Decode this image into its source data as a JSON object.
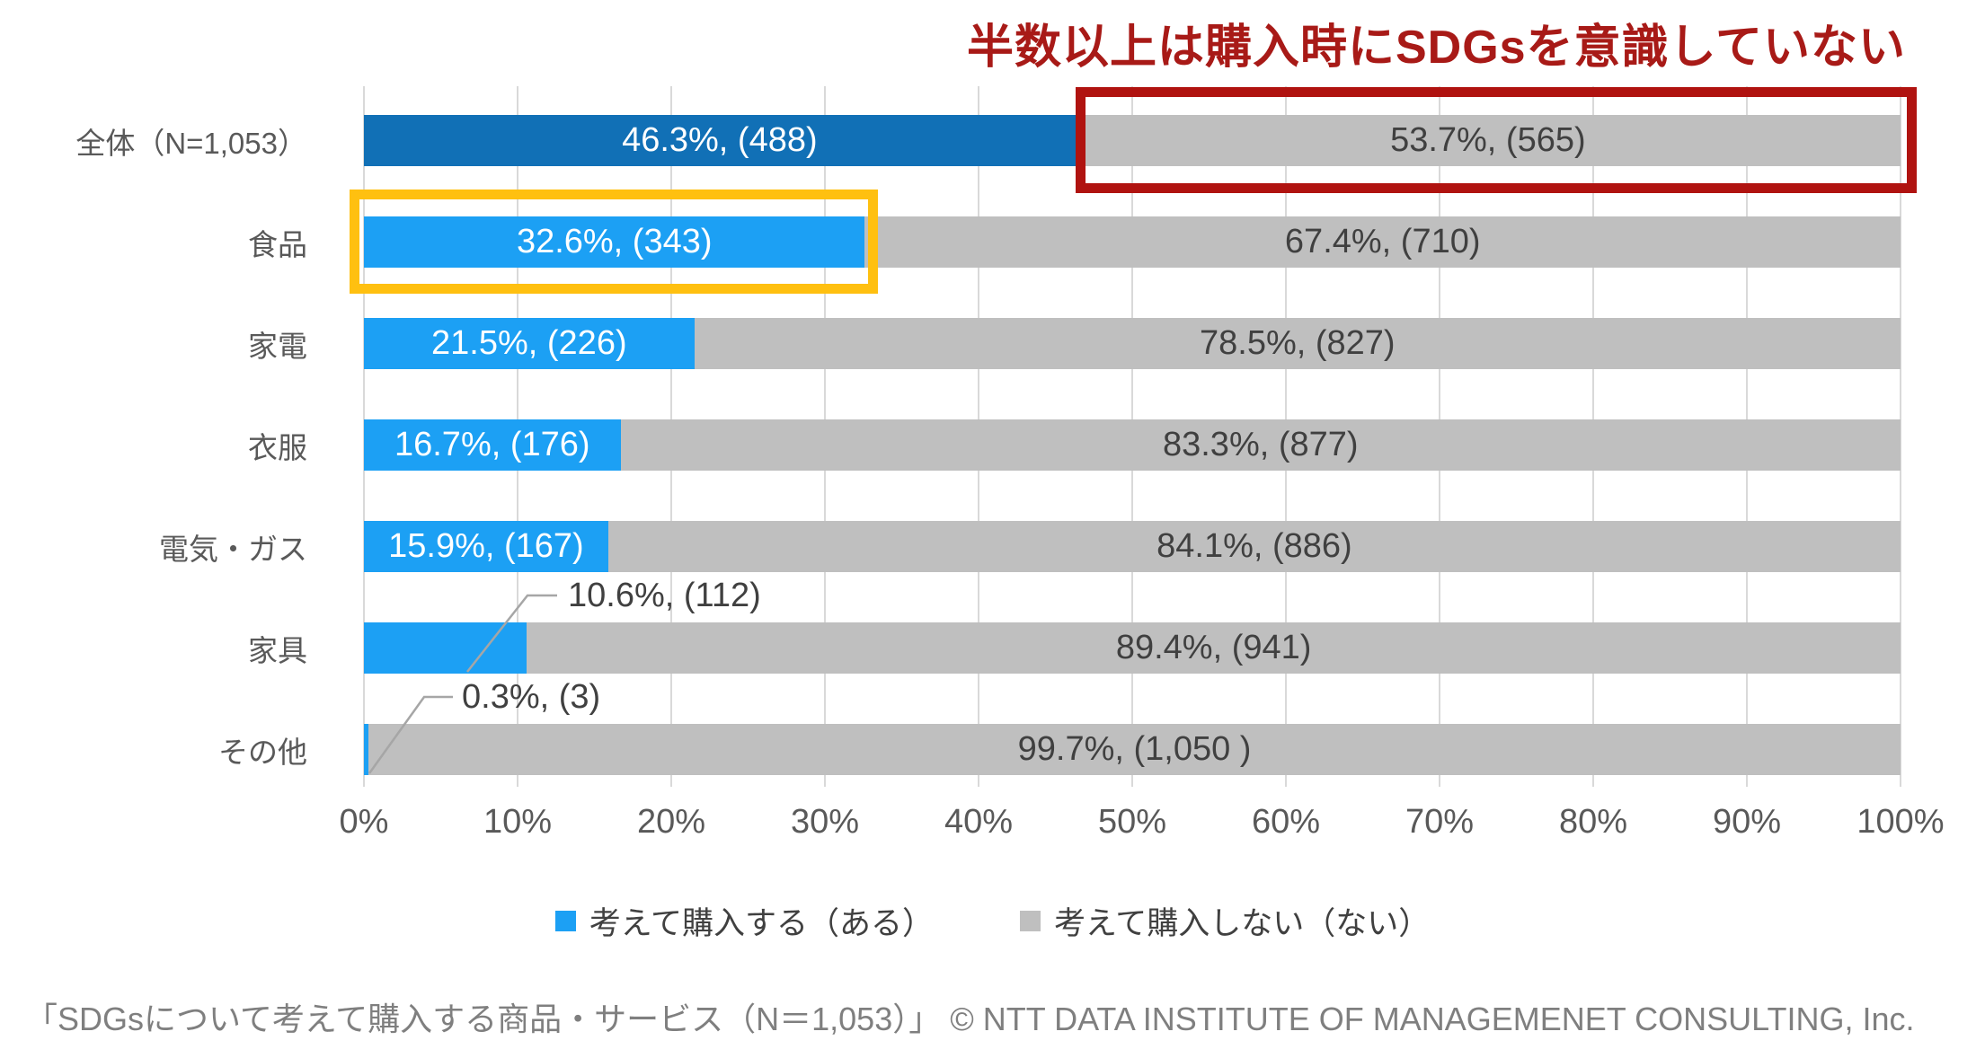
{
  "headline": "半数以上は購入時にSDGsを意識していない",
  "colors": {
    "headline_red": "#A81A17",
    "annotation_red_box": "#B01310",
    "annotation_yellow_box": "#FFC010",
    "bar_blue_total_row": "#1170B6",
    "bar_blue_category_rows": "#1CA0F4",
    "bar_gray": "#BFBFBF",
    "gridline": "#D9D9D9",
    "leader_line": "#A6A6A6",
    "axis_text": "#595959",
    "label_text_on_gray": "#404040"
  },
  "chart_data": {
    "type": "bar",
    "orientation": "horizontal",
    "stacked_percent": true,
    "grid": true,
    "legend_position": "bottom",
    "xlim": [
      0,
      100
    ],
    "x_ticks": [
      "0%",
      "10%",
      "20%",
      "30%",
      "40%",
      "50%",
      "60%",
      "70%",
      "80%",
      "90%",
      "100%"
    ],
    "categories": [
      "全体（N=1,053）",
      "食品",
      "家電",
      "衣服",
      "電気・ガス",
      "家具",
      "その他"
    ],
    "series": [
      {
        "name": "考えて購入する（ある）",
        "values": [
          46.3,
          32.6,
          21.5,
          16.7,
          15.9,
          10.6,
          0.3
        ],
        "counts": [
          488,
          343,
          226,
          176,
          167,
          112,
          3
        ],
        "labels": [
          "46.3%, (488)",
          "32.6%, (343)",
          "21.5%, (226)",
          "16.7%, (176)",
          "15.9%, (167)",
          "10.6%, (112)",
          "0.3%, (3)"
        ]
      },
      {
        "name": "考えて購入しない（ない）",
        "values": [
          53.7,
          67.4,
          78.5,
          83.3,
          84.1,
          89.4,
          99.7
        ],
        "counts": [
          565,
          710,
          827,
          877,
          886,
          941,
          1050
        ],
        "labels": [
          "53.7%, (565)",
          "67.4%, (710)",
          "78.5%, (827)",
          "83.3%, (877)",
          "84.1%, (886)",
          "89.4%, (941)",
          "99.7%, (1,050 )"
        ]
      }
    ],
    "callout_rows": [
      5,
      6
    ]
  },
  "legend": {
    "item1": "考えて購入する（ある）",
    "item2": "考えて購入しない（ない）"
  },
  "footer": "「SDGsについて考えて購入する商品・サービス（N＝1,053）」 © NTT DATA INSTITUTE OF MANAGEMENET CONSULTING, Inc."
}
